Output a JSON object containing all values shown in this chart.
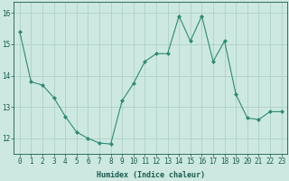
{
  "x": [
    0,
    1,
    2,
    3,
    4,
    5,
    6,
    7,
    8,
    9,
    10,
    11,
    12,
    13,
    14,
    15,
    16,
    17,
    18,
    19,
    20,
    21,
    22,
    23
  ],
  "y": [
    15.4,
    13.8,
    13.7,
    13.3,
    12.7,
    12.2,
    12.0,
    11.85,
    11.82,
    13.2,
    13.75,
    14.45,
    14.7,
    14.7,
    15.9,
    15.1,
    15.9,
    14.45,
    15.1,
    13.4,
    12.65,
    12.6,
    12.85,
    12.85
  ],
  "line_color": "#2e8b74",
  "marker": "D",
  "marker_size": 2.0,
  "bg_color": "#cce8e0",
  "grid_color": "#aaccbf",
  "xlabel": "Humidex (Indice chaleur)",
  "ylim": [
    11.5,
    16.35
  ],
  "xlim": [
    -0.5,
    23.5
  ],
  "yticks": [
    12,
    13,
    14,
    15,
    16
  ],
  "xticks": [
    0,
    1,
    2,
    3,
    4,
    5,
    6,
    7,
    8,
    9,
    10,
    11,
    12,
    13,
    14,
    15,
    16,
    17,
    18,
    19,
    20,
    21,
    22,
    23
  ],
  "xtick_labels": [
    "0",
    "1",
    "2",
    "3",
    "4",
    "5",
    "6",
    "7",
    "8",
    "9",
    "10",
    "11",
    "12",
    "13",
    "14",
    "15",
    "16",
    "17",
    "18",
    "19",
    "20",
    "21",
    "22",
    "23"
  ],
  "tick_color": "#1a5c4e",
  "label_fontsize": 6.0,
  "tick_fontsize": 5.5,
  "spine_color": "#1a5c4e",
  "line_width": 0.8
}
